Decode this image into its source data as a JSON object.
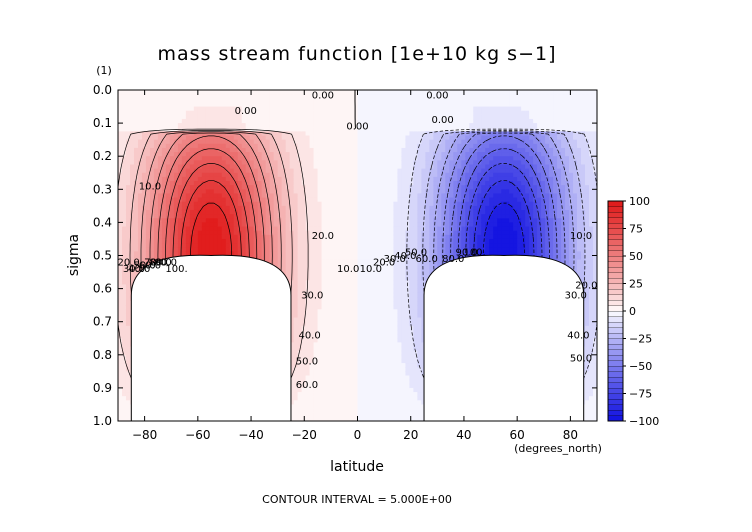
{
  "chart_data": {
    "type": "contour",
    "title": "mass stream function [1e+10 kg s−1]",
    "xlabel": "latitude",
    "ylabel": "sigma",
    "y_unit_label": "(1)",
    "x_unit_label": "(degrees_north)",
    "footer": "CONTOUR INTERVAL = 5.000E+00",
    "xlim": [
      -90,
      90
    ],
    "ylim": [
      0.0,
      1.0
    ],
    "y_inverted": true,
    "x_ticks": [
      -80,
      -60,
      -40,
      -20,
      0,
      20,
      40,
      60,
      80
    ],
    "x_tick_labels": [
      "−80",
      "−60",
      "−40",
      "−20",
      "0",
      "20",
      "40",
      "60",
      "80"
    ],
    "y_ticks": [
      0.0,
      0.1,
      0.2,
      0.3,
      0.4,
      0.5,
      0.6,
      0.7,
      0.8,
      0.9,
      1.0
    ],
    "y_tick_labels": [
      "0.0",
      "0.1",
      "0.2",
      "0.3",
      "0.4",
      "0.5",
      "0.6",
      "0.7",
      "0.8",
      "0.9",
      "1.0"
    ],
    "colorbar": {
      "min": -100,
      "max": 100,
      "step": 5,
      "ticks": [
        100,
        75,
        50,
        25,
        0,
        -25,
        -50,
        -75,
        -100
      ],
      "tick_labels": [
        "100",
        "75",
        "50",
        "25",
        "0",
        "−25",
        "−50",
        "−75",
        "−100"
      ],
      "colors": {
        "neg": "#1010e0",
        "mid": "#ffffff",
        "pos": "#e01818"
      }
    },
    "contour_interval": 5,
    "cells": [
      {
        "center_lat": -55,
        "center_sigma": 0.5,
        "peak": 100,
        "sign": "positive"
      },
      {
        "center_lat": 55,
        "center_sigma": 0.5,
        "peak": -100,
        "sign": "negative"
      }
    ],
    "masked_regions": [
      {
        "lat_range": [
          -85,
          -25
        ],
        "top_sigma": 0.5
      },
      {
        "lat_range": [
          25,
          85
        ],
        "top_sigma": 0.5
      }
    ],
    "contour_labels": [
      {
        "text": "0.00",
        "lat": -13,
        "sigma": 0.025
      },
      {
        "text": "0.00",
        "lat": -42,
        "sigma": 0.072
      },
      {
        "text": "0.00",
        "lat": 0,
        "sigma": 0.12
      },
      {
        "text": "0.00",
        "lat": 30,
        "sigma": 0.025
      },
      {
        "text": "0.00",
        "lat": 32,
        "sigma": 0.1
      },
      {
        "text": "10.0",
        "lat": -78,
        "sigma": 0.3
      },
      {
        "text": "10.0",
        "lat": -3.5,
        "sigma": 0.55
      },
      {
        "text": "20.0",
        "lat": -86,
        "sigma": 0.53
      },
      {
        "text": "20.0",
        "lat": -13,
        "sigma": 0.45
      },
      {
        "text": "30.0",
        "lat": -84,
        "sigma": 0.55
      },
      {
        "text": "30.0",
        "lat": -17,
        "sigma": 0.63
      },
      {
        "text": "40.0",
        "lat": -82,
        "sigma": 0.55
      },
      {
        "text": "40.0",
        "lat": -18,
        "sigma": 0.75
      },
      {
        "text": "50.0",
        "lat": -80,
        "sigma": 0.54
      },
      {
        "text": "50.0",
        "lat": -19,
        "sigma": 0.83
      },
      {
        "text": "60.0",
        "lat": -78,
        "sigma": 0.54
      },
      {
        "text": "60.0",
        "lat": -19,
        "sigma": 0.9
      },
      {
        "text": "70.0",
        "lat": -76,
        "sigma": 0.53
      },
      {
        "text": "80.0",
        "lat": -74,
        "sigma": 0.53
      },
      {
        "text": "90.0",
        "lat": -72,
        "sigma": 0.53
      },
      {
        "text": "100.",
        "lat": -68,
        "sigma": 0.55
      },
      {
        "text": "10.0",
        "lat": 5,
        "sigma": 0.55
      },
      {
        "text": "20.0",
        "lat": 10,
        "sigma": 0.53
      },
      {
        "text": "30.0",
        "lat": 14,
        "sigma": 0.52
      },
      {
        "text": "40.0",
        "lat": 18,
        "sigma": 0.51
      },
      {
        "text": "50.0",
        "lat": 22,
        "sigma": 0.5
      },
      {
        "text": "60.0",
        "lat": 26,
        "sigma": 0.52
      },
      {
        "text": "80.0",
        "lat": 36,
        "sigma": 0.52
      },
      {
        "text": "90.0",
        "lat": 41,
        "sigma": 0.5
      },
      {
        "text": "100.",
        "lat": 44,
        "sigma": 0.5
      },
      {
        "text": "10.0",
        "lat": 84,
        "sigma": 0.45
      },
      {
        "text": "20.0",
        "lat": 86,
        "sigma": 0.6
      },
      {
        "text": "30.0",
        "lat": 82,
        "sigma": 0.63
      },
      {
        "text": "40.0",
        "lat": 83,
        "sigma": 0.75
      },
      {
        "text": "50.0",
        "lat": 84,
        "sigma": 0.82
      }
    ]
  }
}
